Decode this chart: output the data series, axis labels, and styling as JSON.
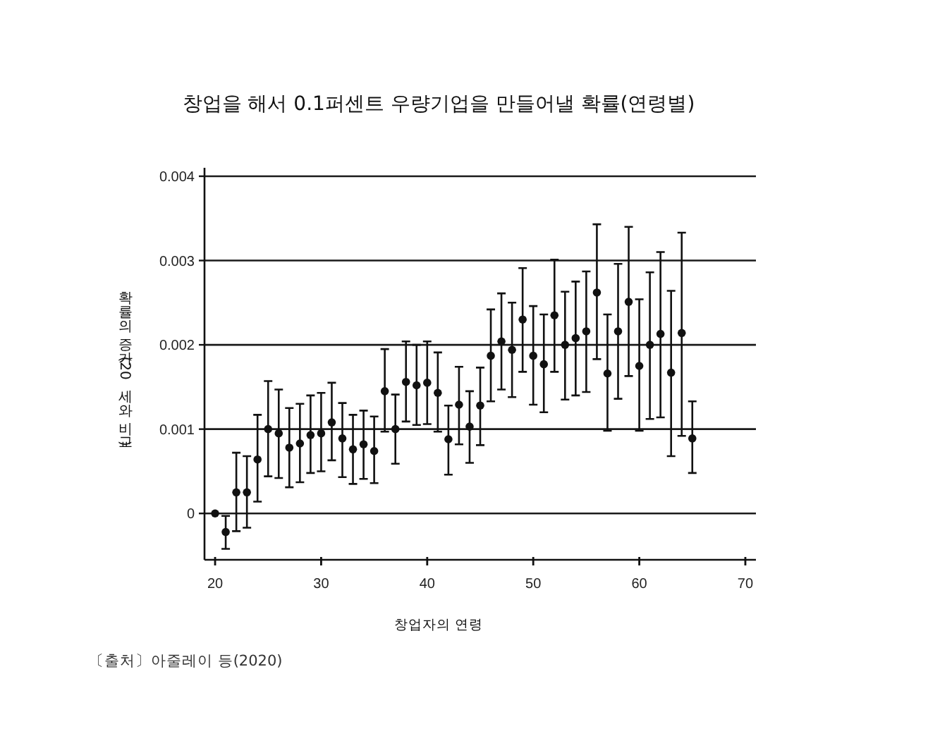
{
  "chart_data": {
    "type": "scatter",
    "title": "창업을 해서 0.1퍼센트 우량기업을 만들어낼 확률(연령별)",
    "xlabel": "창업자의 연령",
    "ylabel": "확률의 증가(20세와 비교)",
    "annotations": [
      "〔출처〕아줄레이 등(2020)"
    ],
    "x": [
      20,
      21,
      22,
      23,
      24,
      25,
      26,
      27,
      28,
      29,
      30,
      31,
      32,
      33,
      34,
      35,
      36,
      37,
      38,
      39,
      40,
      41,
      42,
      43,
      44,
      45,
      46,
      47,
      48,
      49,
      50,
      51,
      52,
      53,
      54,
      55,
      56,
      57,
      58,
      59,
      60,
      61,
      62,
      63,
      64,
      65
    ],
    "series": [
      {
        "color": "#111111",
        "values": [
          0,
          -0.00022,
          0.00025,
          0.00025,
          0.00064,
          0.001,
          0.00095,
          0.00078,
          0.00083,
          0.00093,
          0.00095,
          0.00108,
          0.00089,
          0.00076,
          0.00082,
          0.00074,
          0.00145,
          0.001,
          0.00156,
          0.00152,
          0.00155,
          0.00143,
          0.00088,
          0.00129,
          0.00103,
          0.00128,
          0.00187,
          0.00204,
          0.00194,
          0.0023,
          0.00187,
          0.00177,
          0.00235,
          0.002,
          0.00208,
          0.00216,
          0.00262,
          0.00166,
          0.00216,
          0.00251,
          0.00175,
          0.002,
          0.00213,
          0.00167,
          0.00214,
          0.00089
        ],
        "errors": [
          null,
          [
            -0.00042,
            -3e-05
          ],
          [
            -0.00021,
            0.00072
          ],
          [
            -0.00017,
            0.00068
          ],
          [
            0.00014,
            0.00117
          ],
          [
            0.00044,
            0.00157
          ],
          [
            0.00042,
            0.00147
          ],
          [
            0.00031,
            0.00125
          ],
          [
            0.00037,
            0.0013
          ],
          [
            0.00048,
            0.0014
          ],
          [
            0.0005,
            0.00143
          ],
          [
            0.00063,
            0.00155
          ],
          [
            0.00043,
            0.00131
          ],
          [
            0.00035,
            0.00117
          ],
          [
            0.00041,
            0.00122
          ],
          [
            0.00036,
            0.00115
          ],
          [
            0.00097,
            0.00195
          ],
          [
            0.00059,
            0.00141
          ],
          [
            0.00109,
            0.00204
          ],
          [
            0.00105,
            0.002
          ],
          [
            0.00106,
            0.00204
          ],
          [
            0.00097,
            0.00191
          ],
          [
            0.00046,
            0.00128
          ],
          [
            0.00082,
            0.00174
          ],
          [
            0.0006,
            0.00145
          ],
          [
            0.00081,
            0.00173
          ],
          [
            0.00133,
            0.00242
          ],
          [
            0.00147,
            0.00261
          ],
          [
            0.00138,
            0.0025
          ],
          [
            0.00168,
            0.00291
          ],
          [
            0.00129,
            0.00246
          ],
          [
            0.0012,
            0.00236
          ],
          [
            0.00168,
            0.00301
          ],
          [
            0.00135,
            0.00263
          ],
          [
            0.0014,
            0.00275
          ],
          [
            0.00144,
            0.00287
          ],
          [
            0.00183,
            0.00343
          ],
          [
            0.00098,
            0.00236
          ],
          [
            0.00136,
            0.00296
          ],
          [
            0.00163,
            0.0034
          ],
          [
            0.00098,
            0.00254
          ],
          [
            0.00112,
            0.00286
          ],
          [
            0.00114,
            0.0031
          ],
          [
            0.00068,
            0.00264
          ],
          [
            0.00092,
            0.00333
          ],
          [
            0.00048,
            0.00133
          ]
        ]
      }
    ],
    "xlim": [
      19,
      71
    ],
    "ylim": [
      -0.00055,
      0.0041
    ],
    "xticks": [
      20,
      30,
      40,
      50,
      60,
      70
    ],
    "yticks": [
      0,
      0.001,
      0.002,
      0.003,
      0.004
    ],
    "grid": "y",
    "marker": "circle"
  }
}
